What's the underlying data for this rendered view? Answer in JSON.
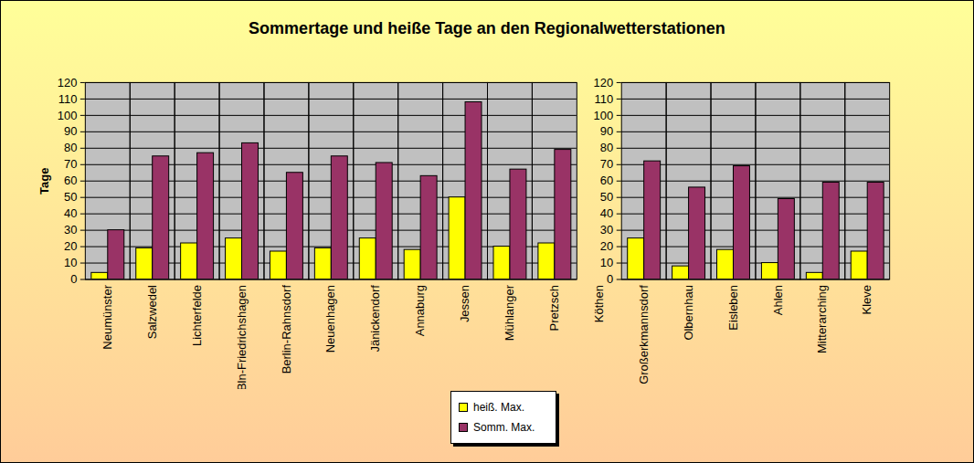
{
  "chart_data": {
    "type": "bar",
    "title": "Sommertage und heiße Tage an den Regionalwetterstationen",
    "y_label": "Tage",
    "categories": [
      "Neumünster",
      "Salzwedel",
      "Lichterfelde",
      "Bln-Friedrichshagen",
      "Berlin-Rahnsdorf",
      "Neuenhagen",
      "Jänickendorf",
      "Annaburg",
      "Jessen",
      "Mühlanger",
      "Pretzsch",
      "Köthen",
      "Großerkmannsdorf",
      "Olbernhau",
      "Eisleben",
      "Ahlen",
      "Mitterarching",
      "Kleve"
    ],
    "series": [
      {
        "name": "heiß. Max.",
        "color": "#ffff00",
        "values": [
          4,
          19,
          22,
          25,
          17,
          19,
          25,
          18,
          50,
          20,
          22,
          null,
          25,
          8,
          18,
          10,
          4,
          17
        ]
      },
      {
        "name": "Somm. Max.",
        "color": "#993366",
        "values": [
          30,
          75,
          77,
          83,
          65,
          75,
          71,
          63,
          108,
          67,
          79,
          null,
          72,
          56,
          69,
          49,
          59,
          59
        ]
      }
    ],
    "ylim": [
      0,
      120
    ],
    "yticks": [
      0,
      10,
      20,
      30,
      40,
      50,
      60,
      70,
      80,
      90,
      100,
      110,
      120
    ],
    "grid": true,
    "legend": "bottom"
  }
}
